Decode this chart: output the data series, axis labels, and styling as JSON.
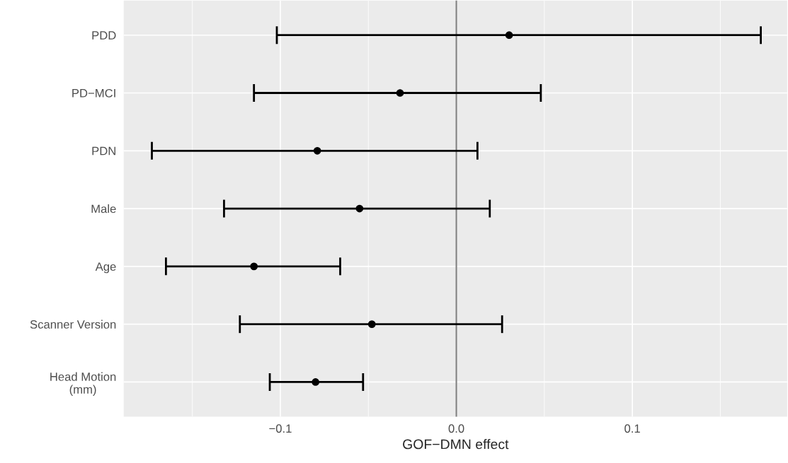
{
  "chart_data": {
    "type": "scatter",
    "orientation": "horizontal",
    "xlabel": "GOF−DMN effect",
    "categories": [
      "PDD",
      "PD−MCI",
      "PDN",
      "Male",
      "Age",
      "Scanner Version",
      "Head Motion\n(mm)"
    ],
    "values": [
      0.03,
      -0.032,
      -0.079,
      -0.055,
      -0.115,
      -0.048,
      -0.08
    ],
    "errors": [
      [
        -0.102,
        0.173
      ],
      [
        -0.115,
        0.048
      ],
      [
        -0.173,
        0.012
      ],
      [
        -0.132,
        0.019
      ],
      [
        -0.165,
        -0.066
      ],
      [
        -0.123,
        0.026
      ],
      [
        -0.106,
        -0.053
      ]
    ],
    "color": "#000000",
    "marker": "circle",
    "xlim": [
      -0.189,
      0.188
    ],
    "xticks": [
      {
        "value": -0.1,
        "label": "−0.1"
      },
      {
        "value": 0.0,
        "label": "0.0"
      },
      {
        "value": 0.1,
        "label": "0.1"
      }
    ],
    "ref_lines": [
      {
        "axis": "x",
        "value": 0,
        "color": "#808080"
      }
    ],
    "grid": true
  }
}
